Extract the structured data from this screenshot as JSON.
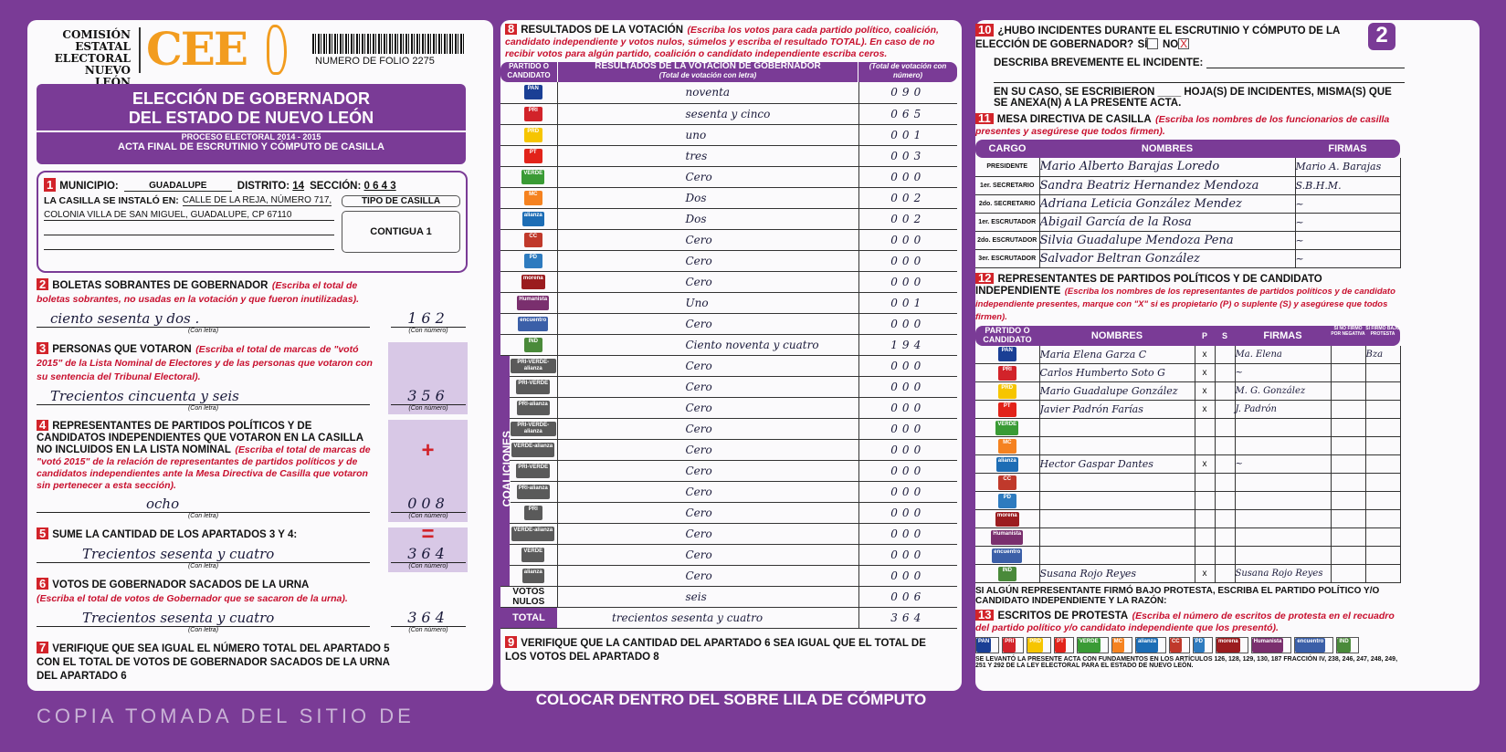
{
  "header": {
    "org_lines": [
      "COMISIÓN",
      "ESTATAL",
      "ELECTORAL",
      "NUEVO LEÓN"
    ],
    "logo_text": "CEE",
    "folio": "NUMERO DE FOLIO 2275",
    "title1": "ELECCIÓN DE GOBERNADOR",
    "title2": "DEL ESTADO DE NUEVO LEÓN",
    "process": "PROCESO ELECTORAL 2014 - 2015",
    "acta": "ACTA FINAL DE ESCRUTINIO Y CÓMPUTO DE CASILLA",
    "page_number": "2"
  },
  "s1": {
    "n": "1",
    "municipio_label": "MUNICIPIO:",
    "municipio": "GUADALUPE",
    "distrito_label": "DISTRITO:",
    "distrito": "14",
    "seccion_label": "SECCIÓN:",
    "seccion": "0 6 4 3",
    "instalo_label": "LA CASILLA SE INSTALÓ EN:",
    "address1": "CALLE DE LA REJA, NÚMERO 717,",
    "address2": "COLONIA VILLA DE SAN MIGUEL, GUADALUPE, CP 67110",
    "tipo_label": "TIPO DE CASILLA",
    "tipo": "CONTIGUA 1"
  },
  "s2": {
    "n": "2",
    "title": "BOLETAS SOBRANTES DE GOBERNADOR",
    "note": "(Escriba el total de boletas sobrantes, no usadas en la votación y que fueron inutilizadas).",
    "letra": "ciento sesenta y dos .",
    "numero": "162"
  },
  "s3": {
    "n": "3",
    "title": "PERSONAS QUE VOTARON",
    "note": "(Escriba el total de marcas de \"votó 2015\" de la Lista Nominal de Electores y de las personas que votaron con su sentencia del Tribunal Electoral).",
    "letra": "Trecientos cincuenta y seis",
    "numero": "356"
  },
  "s4": {
    "n": "4",
    "title": "REPRESENTANTES DE PARTIDOS POLÍTICOS Y DE CANDIDATOS INDEPENDIENTES QUE VOTARON EN LA CASILLA NO INCLUIDOS EN LA LISTA NOMINAL",
    "note": "(Escriba el total de marcas de \"votó 2015\" de la relación de representantes de partidos políticos y de candidatos independientes ante la Mesa Directiva de Casilla que votaron sin pertenecer a esta sección).",
    "letra": "ocho",
    "numero": "008",
    "plus": "+"
  },
  "s5": {
    "n": "5",
    "title": "SUME LA CANTIDAD DE LOS APARTADOS 3 Y 4:",
    "letra": "Trecientos sesenta y cuatro",
    "numero": "364",
    "equals": "="
  },
  "s6": {
    "n": "6",
    "title": "VOTOS DE GOBERNADOR SACADOS DE LA URNA",
    "note": "(Escriba el total de votos de Gobernador que se sacaron de la urna).",
    "letra": "Trecientos sesenta y cuatro",
    "numero": "364"
  },
  "s7": {
    "n": "7",
    "text": "VERIFIQUE QUE SEA IGUAL EL NÚMERO TOTAL DEL APARTADO 5 CON EL TOTAL DE VOTOS DE GOBERNADOR SACADOS DE LA URNA DEL APARTADO 6"
  },
  "labels": {
    "con_letra": "(Con letra)",
    "con_numero": "(Con número)"
  },
  "s8": {
    "n": "8",
    "title": "RESULTADOS DE LA VOTACIÓN",
    "note": "(Escriba los votos para cada partido político, coalición, candidato independiente y votos nulos, súmelos y escriba el resultado TOTAL). En caso de no recibir votos para algún partido, coalición o candidato independiente escriba ceros.",
    "col1": "PARTIDO O CANDIDATO",
    "col2": "RESULTADOS DE LA VOTACIÓN DE GOBERNADOR",
    "col2_sub": "(Total de votación con letra)",
    "col3": "(Total de votación con número)",
    "coaliciones": "COALICIONES",
    "rows": [
      {
        "party": "PAN",
        "color": "#1a3f95",
        "letra": "noventa",
        "numero": "090"
      },
      {
        "party": "PRI",
        "color": "#d2232a",
        "letra": "sesenta y cinco",
        "numero": "065"
      },
      {
        "party": "PRD",
        "color": "#f6c500",
        "letra": "uno",
        "numero": "001"
      },
      {
        "party": "PT",
        "color": "#e2231a",
        "letra": "tres",
        "numero": "003"
      },
      {
        "party": "VERDE",
        "color": "#3a9b35",
        "letra": "Cero",
        "numero": "000"
      },
      {
        "party": "MC",
        "color": "#f58220",
        "letra": "Dos",
        "numero": "002"
      },
      {
        "party": "alianza",
        "color": "#1d6db5",
        "letra": "Dos",
        "numero": "002"
      },
      {
        "party": "CC",
        "color": "#c0392b",
        "letra": "Cero",
        "numero": "000"
      },
      {
        "party": "PD",
        "color": "#2e7bbf",
        "letra": "Cero",
        "numero": "000"
      },
      {
        "party": "morena",
        "color": "#9b1c1f",
        "letra": "Cero",
        "numero": "000"
      },
      {
        "party": "Humanista",
        "color": "#7a2f6e",
        "letra": "Uno",
        "numero": "001"
      },
      {
        "party": "encuentro",
        "color": "#3b5fa8",
        "letra": "Cero",
        "numero": "000"
      },
      {
        "party": "IND",
        "color": "#4a8a3a",
        "letra": "Ciento noventa y cuatro",
        "numero": "194"
      },
      {
        "party": "PRI-VERDE-alianza",
        "color": "#5a5a5a",
        "letra": "Cero",
        "numero": "000"
      },
      {
        "party": "PRI-VERDE",
        "color": "#5a5a5a",
        "letra": "Cero",
        "numero": "000"
      },
      {
        "party": "PRI-alianza",
        "color": "#5a5a5a",
        "letra": "Cero",
        "numero": "000"
      },
      {
        "party": "PRI-VERDE-alianza",
        "color": "#5a5a5a",
        "letra": "Cero",
        "numero": "000"
      },
      {
        "party": "VERDE-alianza",
        "color": "#5a5a5a",
        "letra": "Cero",
        "numero": "000"
      },
      {
        "party": "PRI-VERDE",
        "color": "#5a5a5a",
        "letra": "Cero",
        "numero": "000"
      },
      {
        "party": "PRI-alianza",
        "color": "#5a5a5a",
        "letra": "Cero",
        "numero": "000"
      },
      {
        "party": "PRI",
        "color": "#5a5a5a",
        "letra": "Cero",
        "numero": "000"
      },
      {
        "party": "VERDE-alianza",
        "color": "#5a5a5a",
        "letra": "Cero",
        "numero": "000"
      },
      {
        "party": "VERDE",
        "color": "#5a5a5a",
        "letra": "Cero",
        "numero": "000"
      },
      {
        "party": "alianza",
        "color": "#5a5a5a",
        "letra": "Cero",
        "numero": "000"
      }
    ],
    "nulos_label": "VOTOS NULOS",
    "nulos_letra": "seis",
    "nulos_numero": "006",
    "total_label": "TOTAL",
    "total_letra": "trecientos sesenta y cuatro",
    "total_numero": "364"
  },
  "s9": {
    "n": "9",
    "text": "VERIFIQUE QUE LA CANTIDAD DEL APARTADO 6 SEA IGUAL QUE EL TOTAL DE LOS VOTOS DEL APARTADO 8"
  },
  "s10": {
    "n": "10",
    "question": "¿HUBO INCIDENTES DURANTE EL ESCRUTINIO Y CÓMPUTO DE LA ELECCIÓN DE GOBERNADOR?",
    "si": "SÍ",
    "no": "NO",
    "mark": "X",
    "describe": "DESCRIBA BREVEMENTE EL INCIDENTE:",
    "hojas": "EN SU CASO, SE ESCRIBIERON ____ HOJA(S) DE INCIDENTES, MISMA(S) QUE SE ANEXA(N) A LA PRESENTE ACTA."
  },
  "s11": {
    "n": "11",
    "title": "MESA DIRECTIVA DE CASILLA",
    "note": "(Escriba los nombres de los funcionarios de casilla presentes y asegúrese que todos firmen).",
    "cols": [
      "CARGO",
      "NOMBRES",
      "FIRMAS"
    ],
    "rows": [
      {
        "cargo": "PRESIDENTE",
        "nombre": "Mario Alberto Barajas Loredo",
        "firma": "Mario A. Barajas"
      },
      {
        "cargo": "1er. SECRETARIO",
        "nombre": "Sandra Beatriz Hernandez Mendoza",
        "firma": "S.B.H.M."
      },
      {
        "cargo": "2do. SECRETARIO",
        "nombre": "Adriana Leticia González Mendez",
        "firma": "~"
      },
      {
        "cargo": "1er. ESCRUTADOR",
        "nombre": "Abigail García de la Rosa",
        "firma": "~"
      },
      {
        "cargo": "2do. ESCRUTADOR",
        "nombre": "Silvia Guadalupe Mendoza Pena",
        "firma": "~"
      },
      {
        "cargo": "3er. ESCRUTADOR",
        "nombre": "Salvador Beltran González",
        "firma": "~"
      }
    ]
  },
  "s12": {
    "n": "12",
    "title": "REPRESENTANTES DE PARTIDOS POLÍTICOS Y DE CANDIDATO INDEPENDIENTE",
    "note": "(Escriba los nombres de los representantes de partidos políticos y de candidato independiente presentes, marque con \"X\" si es propietario (P) o suplente (S) y asegúrese que todos firmen).",
    "cols": [
      "PARTIDO O CANDIDATO",
      "NOMBRES",
      "P",
      "S",
      "FIRMAS",
      "SI NO FIRMÓ POR NEGATIVA",
      "SI FIRMÓ BAJO PROTESTA"
    ],
    "marque": "Marque con \"X\"",
    "rows": [
      {
        "party": "PAN",
        "color": "#1a3f95",
        "nombre": "Maria Elena Garza C",
        "p": "x",
        "firma": "Ma. Elena",
        "extra": "Bza"
      },
      {
        "party": "PRI",
        "color": "#d2232a",
        "nombre": "Carlos Humberto Soto G",
        "p": "x",
        "firma": "~"
      },
      {
        "party": "PRD",
        "color": "#f6c500",
        "nombre": "Mario Guadalupe González",
        "p": "x",
        "firma": "M. G. González"
      },
      {
        "party": "PT",
        "color": "#e2231a",
        "nombre": "Javier Padrón Farías",
        "p": "x",
        "firma": "J. Padrón"
      },
      {
        "party": "VERDE",
        "color": "#3a9b35",
        "nombre": "",
        "p": "",
        "firma": ""
      },
      {
        "party": "MC",
        "color": "#f58220",
        "nombre": "",
        "p": "",
        "firma": ""
      },
      {
        "party": "alianza",
        "color": "#1d6db5",
        "nombre": "Hector Gaspar Dantes",
        "p": "x",
        "firma": "~"
      },
      {
        "party": "CC",
        "color": "#c0392b",
        "nombre": "",
        "p": "",
        "firma": ""
      },
      {
        "party": "PD",
        "color": "#2e7bbf",
        "nombre": "",
        "p": "",
        "firma": ""
      },
      {
        "party": "morena",
        "color": "#9b1c1f",
        "nombre": "",
        "p": "",
        "firma": ""
      },
      {
        "party": "Humanista",
        "color": "#7a2f6e",
        "nombre": "",
        "p": "",
        "firma": ""
      },
      {
        "party": "encuentro",
        "color": "#3b5fa8",
        "nombre": "",
        "p": "",
        "firma": ""
      },
      {
        "party": "IND",
        "color": "#4a8a3a",
        "nombre": "Susana Rojo Reyes",
        "p": "x",
        "firma": "Susana Rojo Reyes"
      }
    ],
    "protesta": "SI ALGÚN REPRESENTANTE FIRMÓ BAJO PROTESTA, ESCRIBA EL PARTIDO POLÍTICO Y/O CANDIDATO INDEPENDIENTE Y LA RAZÓN:"
  },
  "s13": {
    "n": "13",
    "title": "ESCRITOS DE PROTESTA",
    "note": "(Escriba el número de escritos de protesta en el recuadro del partido político y/o candidato independiente que los presentó).",
    "boxes": [
      "PAN",
      "PRI",
      "PRD",
      "PT",
      "VERDE",
      "MC",
      "alianza",
      "CC",
      "PD",
      "morena",
      "Humanista",
      "encuentro",
      "IND"
    ]
  },
  "footer_legal": "SE LEVANTÓ LA PRESENTE ACTA CON FUNDAMENTOS EN LOS ARTÍCULOS 126, 128, 129, 130, 187 FRACCIÓN IV, 238, 246, 247, 248, 249, 251 Y 292 DE LA LEY ELECTORAL PARA EL ESTADO DE NUEVO LEÓN.",
  "banner": "COLOCAR DENTRO DEL SOBRE LILA DE CÓMPUTO",
  "watermark": "COPIA TOMADA DEL SITIO DE",
  "colors": {
    "purple": "#7a3b96",
    "orange": "#f29c1f",
    "red": "#d2232a"
  }
}
